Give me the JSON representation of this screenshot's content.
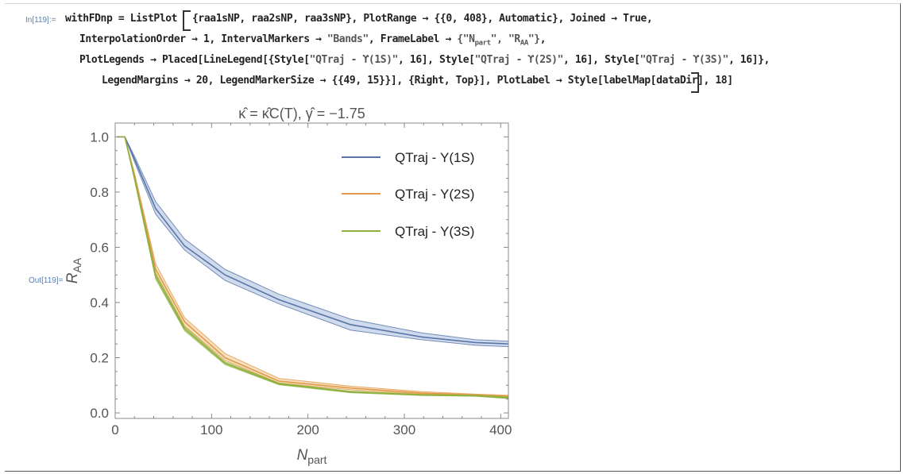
{
  "cell": {
    "in_label": "In[119]:=",
    "out_label": "Out[119]="
  },
  "code": {
    "line1a": "withFDnp = ListPlot",
    "line1b": "{raa1sNP, raa2sNP, raa3sNP}, PlotRange → {{0, 408}, Automatic}, Joined → True,",
    "line2a": "InterpolationOrder → 1, IntervalMarkers → ",
    "line2_str1": "\"Bands\"",
    "line2b": ", FrameLabel → ",
    "line2_str2": "{\"N",
    "line2_sub": "part",
    "line2_str3": "\", \"R",
    "line2_sub2": "AA",
    "line2_str4": "\"}",
    "line2c": ",",
    "line3a": "PlotLegends → Placed[LineLegend[{Style[",
    "line3_s1": "\"QTraj - ϒ(1S)\"",
    "line3b": ", 16], Style[",
    "line3_s2": "\"QTraj - ϒ(2S)\"",
    "line3c": ", 16], Style[",
    "line3_s3": "\"QTraj - ϒ(3S)\"",
    "line3d": ", 16]},",
    "line4": "LegendMargins → 20, LegendMarkerSize → {{49, 15}}], {Right, Top}], PlotLabel → Style[labelMap[dataDir], 18]"
  },
  "colors": {
    "series1": "#5a76a8",
    "series2": "#e29a4a",
    "series3": "#8fb03c",
    "band1": "#c7d3ea",
    "band2": "#f4dcb9",
    "band3": "#d5e3ac"
  },
  "chart_data": {
    "type": "line",
    "title": "κ̂ = κ̂C(T), γ̂ = −1.75",
    "xlabel_main": "N",
    "xlabel_sub": "part",
    "ylabel_main": "R",
    "ylabel_sub": "AA",
    "xlim": [
      0,
      408
    ],
    "ylim": [
      -0.02,
      1.05
    ],
    "xticks": [
      0,
      100,
      200,
      300,
      400
    ],
    "yticks": [
      0.0,
      0.2,
      0.4,
      0.6,
      0.8,
      1.0
    ],
    "ytick_labels": [
      "0.0",
      "0.2",
      "0.4",
      "0.6",
      "0.8",
      "1.0"
    ],
    "legend_position": "top-right",
    "series": [
      {
        "name": "QTraj - Υ(1S)",
        "x": [
          2,
          10,
          20,
          42,
          72,
          114,
          170,
          244,
          318,
          374,
          408
        ],
        "y": [
          1.0,
          1.0,
          0.92,
          0.74,
          0.605,
          0.5,
          0.41,
          0.32,
          0.275,
          0.255,
          0.25
        ],
        "low": [
          1.0,
          1.0,
          0.91,
          0.72,
          0.59,
          0.48,
          0.395,
          0.3,
          0.265,
          0.245,
          0.24
        ],
        "high": [
          1.0,
          1.0,
          0.93,
          0.765,
          0.63,
          0.52,
          0.43,
          0.34,
          0.29,
          0.265,
          0.26
        ]
      },
      {
        "name": "QTraj - Υ(2S)",
        "x": [
          2,
          10,
          20,
          42,
          72,
          114,
          170,
          244,
          318,
          374,
          408
        ],
        "y": [
          1.0,
          1.0,
          0.86,
          0.52,
          0.33,
          0.2,
          0.115,
          0.09,
          0.072,
          0.065,
          0.06
        ],
        "low": [
          1.0,
          1.0,
          0.85,
          0.505,
          0.315,
          0.19,
          0.108,
          0.084,
          0.068,
          0.062,
          0.057
        ],
        "high": [
          1.0,
          1.0,
          0.87,
          0.54,
          0.345,
          0.215,
          0.125,
          0.097,
          0.077,
          0.068,
          0.064
        ]
      },
      {
        "name": "QTraj - Υ(3S)",
        "x": [
          2,
          10,
          20,
          42,
          72,
          114,
          170,
          244,
          318,
          374,
          408
        ],
        "y": [
          1.0,
          1.0,
          0.85,
          0.495,
          0.305,
          0.18,
          0.105,
          0.076,
          0.065,
          0.062,
          0.055
        ],
        "low": [
          1.0,
          1.0,
          0.845,
          0.485,
          0.298,
          0.175,
          0.102,
          0.073,
          0.063,
          0.06,
          0.052
        ],
        "high": [
          1.0,
          1.0,
          0.855,
          0.505,
          0.312,
          0.185,
          0.108,
          0.079,
          0.067,
          0.064,
          0.058
        ]
      }
    ]
  }
}
